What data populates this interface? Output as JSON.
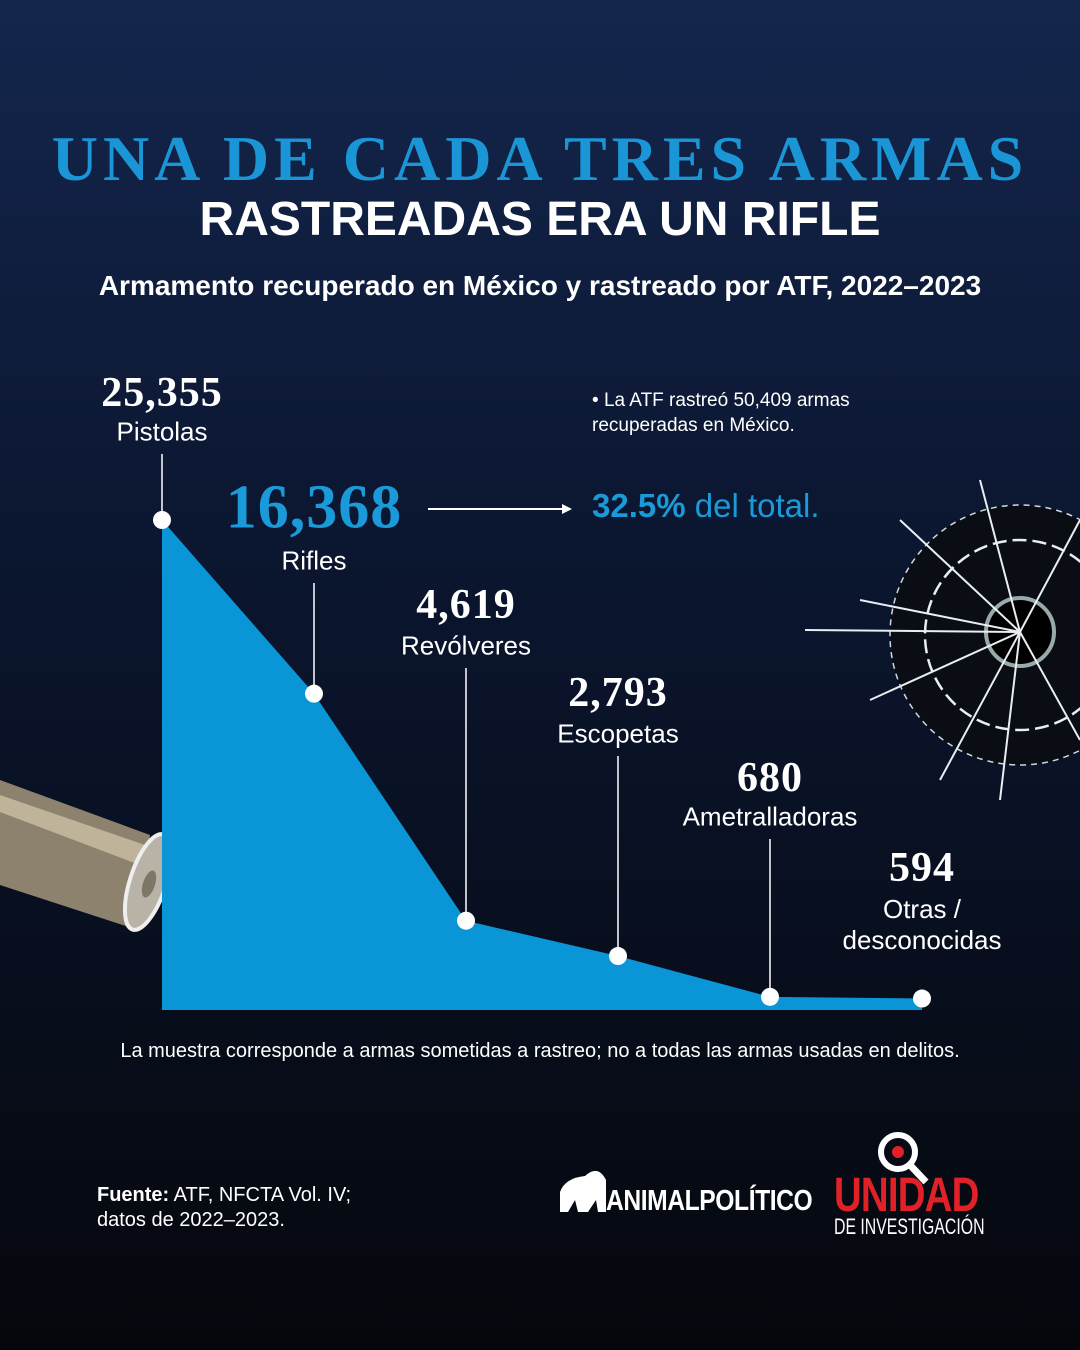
{
  "title_line1": "UNA DE CADA TRES ARMAS",
  "title_line2": "RASTREADAS ERA UN RIFLE",
  "subtitle": "Armamento recuperado en México y rastreado por ATF, 2022–2023",
  "chart_data": {
    "type": "area",
    "categories": [
      "Pistolas",
      "Rifles",
      "Revólveres",
      "Escopetas",
      "Ametralladoras",
      "Otras / desconocidas"
    ],
    "values": [
      25355,
      16368,
      4619,
      2793,
      680,
      594
    ],
    "value_labels": [
      "25,355",
      "16,368",
      "4,619",
      "2,793",
      "680",
      "594"
    ],
    "color": "#0a96d6"
  },
  "note": "La ATF rastreó 50,409 armas recuperadas en México.",
  "callout": {
    "percent": "32.5%",
    "text": "del total."
  },
  "footnote": "La muestra corresponde a armas sometidas a rastreo; no a todas las armas usadas en delitos.",
  "source": {
    "label": "Fuente:",
    "text": "ATF, NFCTA Vol. IV; datos de 2022–2023."
  },
  "logos": {
    "animal": "ANIMALPOLÍTICO",
    "unidad": "UNIDAD",
    "unidad_sub": "DE INVESTIGACIÓN"
  }
}
